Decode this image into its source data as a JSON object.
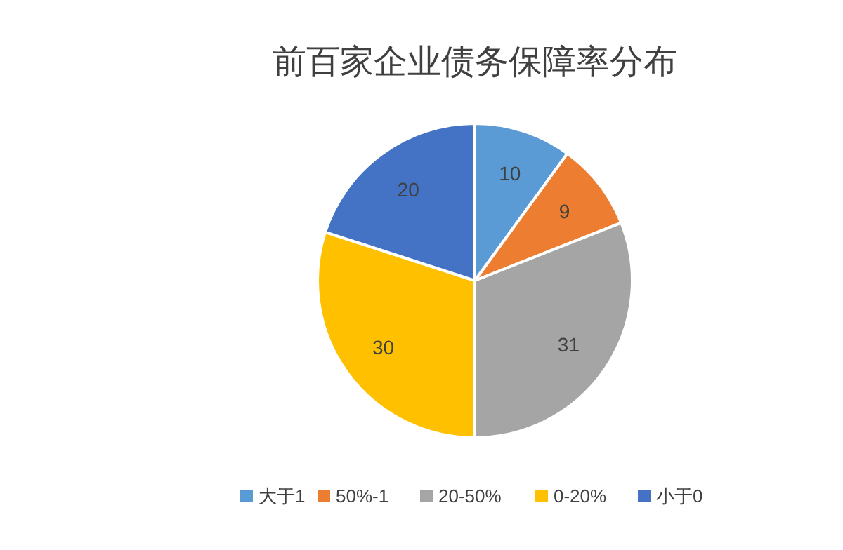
{
  "chart_data": {
    "type": "pie",
    "title": "前百家企业债务保障率分布",
    "categories": [
      "大于1",
      "50%-1",
      "20-50%",
      "0-20%",
      "小于0"
    ],
    "values": [
      10,
      9,
      31,
      30,
      20
    ],
    "colors": [
      "#5b9bd5",
      "#ed7d31",
      "#a5a5a5",
      "#ffc000",
      "#4472c4"
    ],
    "data_labels": true,
    "legend": "bottom"
  }
}
